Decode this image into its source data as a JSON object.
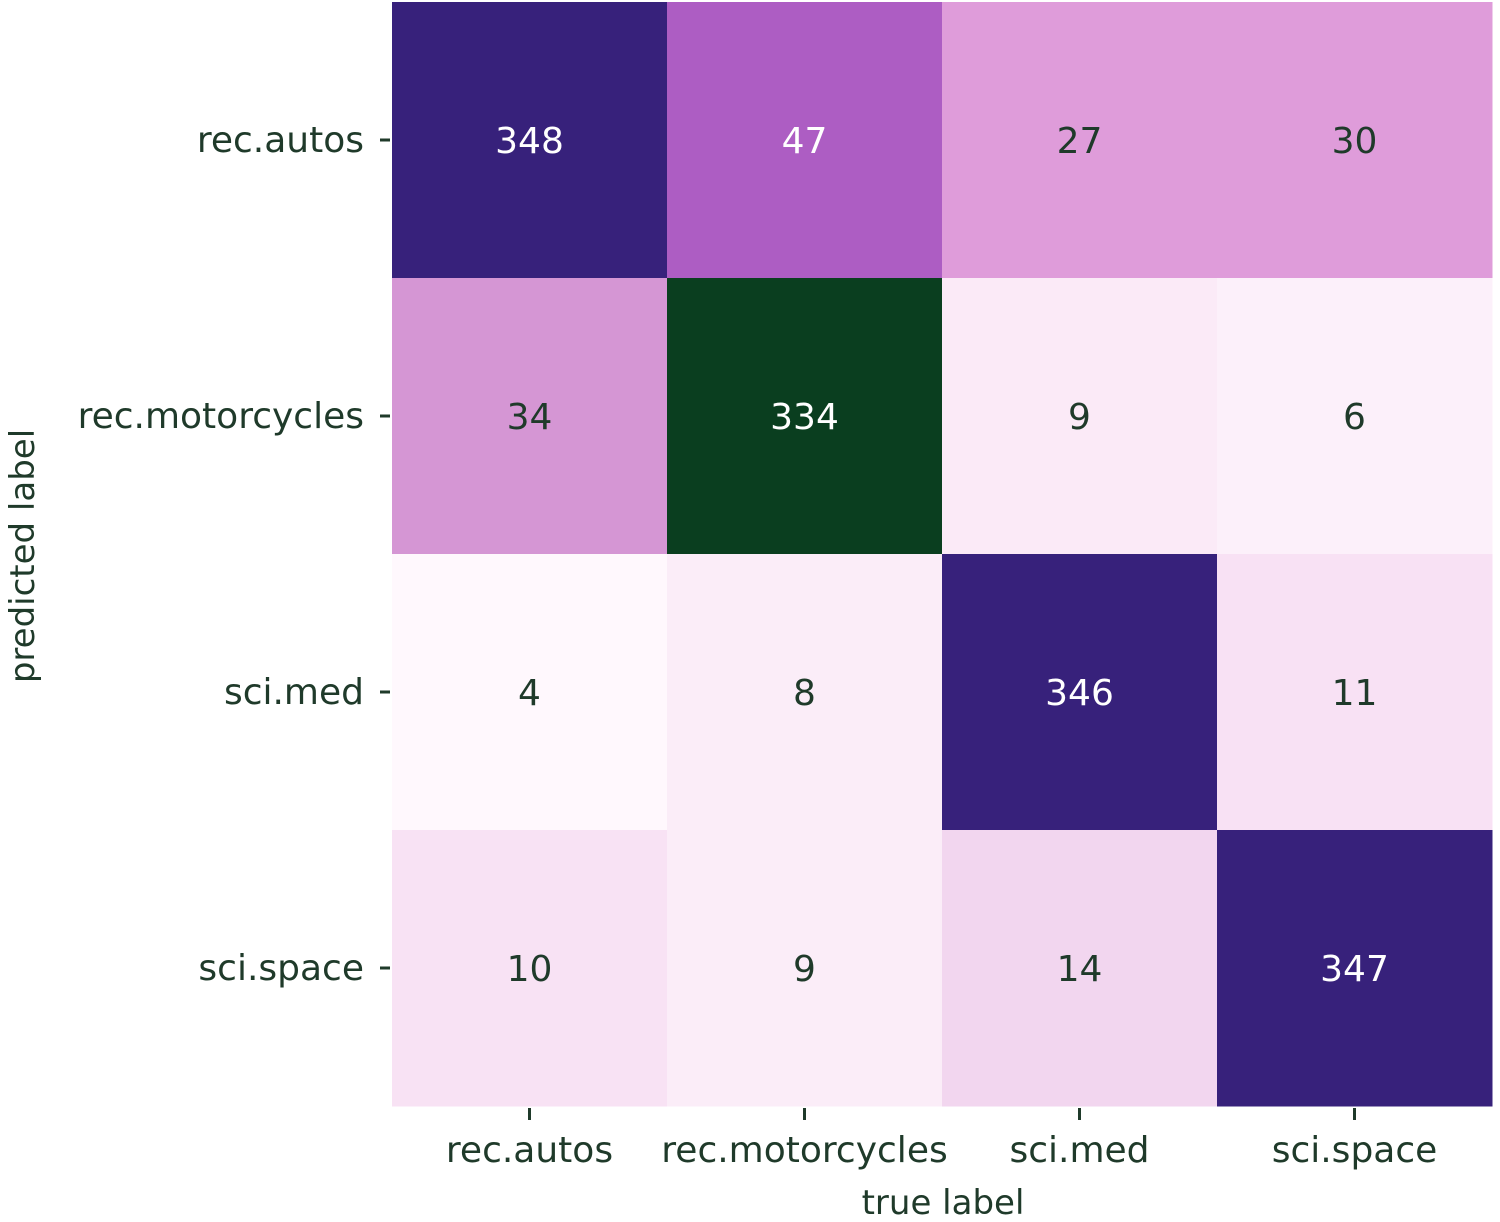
{
  "chart_data": {
    "type": "heatmap",
    "title": "",
    "xlabel": "true label",
    "ylabel": "predicted label",
    "x_categories": [
      "rec.autos",
      "rec.motorcycles",
      "sci.med",
      "sci.space"
    ],
    "y_categories": [
      "rec.autos",
      "rec.motorcycles",
      "sci.med",
      "sci.space"
    ],
    "values": [
      [
        348,
        47,
        27,
        30
      ],
      [
        34,
        334,
        9,
        6
      ],
      [
        4,
        8,
        346,
        11
      ],
      [
        10,
        9,
        14,
        347
      ]
    ],
    "cell_colors": [
      [
        "#37217b",
        "#ad5dc3",
        "#df9cda",
        "#df9cda"
      ],
      [
        "#d596d4",
        "#0a3e1f",
        "#fbeaf7",
        "#fcf0fa"
      ],
      [
        "#fff8fd",
        "#fbedf8",
        "#37217b",
        "#f8e1f4"
      ],
      [
        "#f8e2f4",
        "#fbedf8",
        "#f2d6ef",
        "#37217b"
      ]
    ],
    "text_colors": [
      [
        "#ffffff",
        "#ffffff",
        "#1f3a2a",
        "#1f3a2a"
      ],
      [
        "#1f3a2a",
        "#ffffff",
        "#1f3a2a",
        "#1f3a2a"
      ],
      [
        "#1f3a2a",
        "#1f3a2a",
        "#ffffff",
        "#1f3a2a"
      ],
      [
        "#1f3a2a",
        "#1f3a2a",
        "#1f3a2a",
        "#ffffff"
      ]
    ],
    "colorbar": false,
    "label_color": "#1f3a2a"
  }
}
